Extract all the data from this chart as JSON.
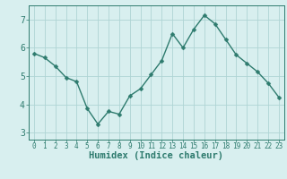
{
  "x": [
    0,
    1,
    2,
    3,
    4,
    5,
    6,
    7,
    8,
    9,
    10,
    11,
    12,
    13,
    14,
    15,
    16,
    17,
    18,
    19,
    20,
    21,
    22,
    23
  ],
  "y": [
    5.8,
    5.65,
    5.35,
    4.95,
    4.8,
    3.85,
    3.3,
    3.75,
    3.65,
    4.3,
    4.55,
    5.05,
    5.55,
    6.5,
    6.0,
    6.65,
    7.15,
    6.85,
    6.3,
    5.75,
    5.45,
    5.15,
    4.75,
    4.25
  ],
  "line_color": "#2e7b6e",
  "marker": "D",
  "marker_size": 2.5,
  "bg_color": "#d8efef",
  "grid_color": "#afd4d4",
  "xlabel": "Humidex (Indice chaleur)",
  "xlim": [
    -0.5,
    23.5
  ],
  "ylim": [
    2.75,
    7.5
  ],
  "yticks": [
    3,
    4,
    5,
    6,
    7
  ],
  "xticks": [
    0,
    1,
    2,
    3,
    4,
    5,
    6,
    7,
    8,
    9,
    10,
    11,
    12,
    13,
    14,
    15,
    16,
    17,
    18,
    19,
    20,
    21,
    22,
    23
  ],
  "tick_color": "#2e7b6e",
  "label_color": "#2e7b6e",
  "font_size": 5.5,
  "xlabel_fontsize": 7.5,
  "linewidth": 1.0
}
